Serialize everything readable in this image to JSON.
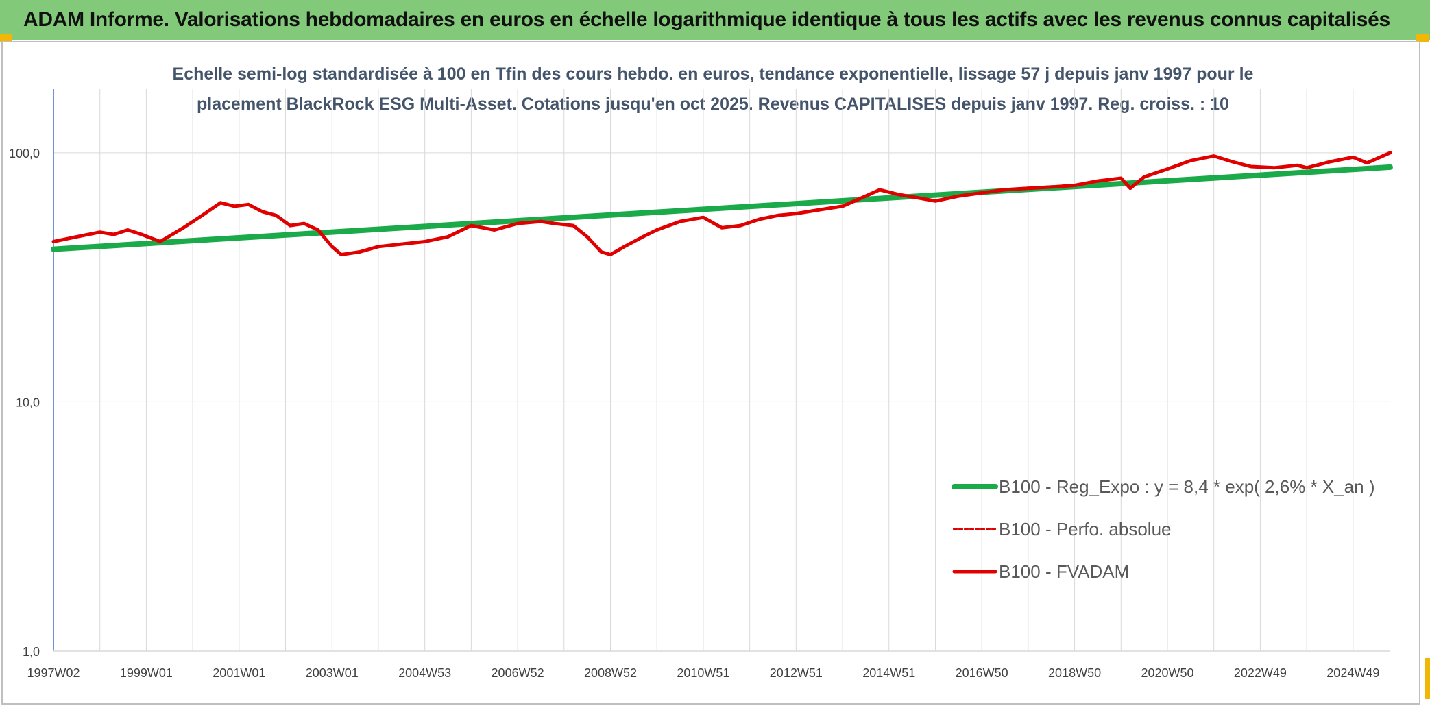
{
  "banner": {
    "title": "ADAM Informe. Valorisations hebdomadaires en euros en échelle logarithmique identique à tous les actifs avec les revenus connus capitalisés"
  },
  "chart_data": {
    "type": "line",
    "title_line1": "Echelle semi-log standardisée à 100 en Tfin des cours hebdo. en euros, tendance exponentielle, lissage 57 j depuis janv 1997 pour le",
    "title_line2": "placement BlackRock ESG Multi-Asset. Cotations jusqu'en oct 2025. Revenus CAPITALISES depuis janv 1997. Reg. croiss. : 10",
    "y_scale": "log",
    "ylim": [
      1,
      180
    ],
    "y_ticks": [
      {
        "value": 1,
        "label": "1,0"
      },
      {
        "value": 10,
        "label": "10,0"
      },
      {
        "value": 100,
        "label": "100,0"
      }
    ],
    "xlim": [
      1997.0,
      2025.8
    ],
    "x_ticks": [
      {
        "value": 1997.0,
        "label": "1997W02"
      },
      {
        "value": 1999.0,
        "label": "1999W01"
      },
      {
        "value": 2001.0,
        "label": "2001W01"
      },
      {
        "value": 2003.0,
        "label": "2003W01"
      },
      {
        "value": 2005.0,
        "label": "2004W53"
      },
      {
        "value": 2007.0,
        "label": "2006W52"
      },
      {
        "value": 2009.0,
        "label": "2008W52"
      },
      {
        "value": 2011.0,
        "label": "2010W51"
      },
      {
        "value": 2013.0,
        "label": "2012W51"
      },
      {
        "value": 2015.0,
        "label": "2014W51"
      },
      {
        "value": 2017.0,
        "label": "2016W50"
      },
      {
        "value": 2019.0,
        "label": "2018W50"
      },
      {
        "value": 2021.0,
        "label": "2020W50"
      },
      {
        "value": 2023.0,
        "label": "2022W49"
      },
      {
        "value": 2025.0,
        "label": "2024W49"
      }
    ],
    "grid": "vertical every year, horizontal at major ticks",
    "legend_position": "bottom-right",
    "series": [
      {
        "name": "B100 - Reg_Expo : y = 8,4 * exp( 2,6% *  X_an )",
        "color": "#1aaa4a",
        "style": "solid-thick",
        "x": [
          1997.0,
          2025.8
        ],
        "y": [
          41.0,
          87.5
        ]
      },
      {
        "name": "B100 - Perfo. absolue",
        "color": "#e00000",
        "style": "dotted",
        "x": [],
        "y": []
      },
      {
        "name": "B100 - FVADAM",
        "color": "#e00000",
        "style": "solid",
        "x": [
          1997.0,
          1997.5,
          1998.0,
          1998.3,
          1998.6,
          1998.9,
          1999.3,
          1999.8,
          2000.2,
          2000.6,
          2000.9,
          2001.2,
          2001.5,
          2001.8,
          2002.1,
          2002.4,
          2002.7,
          2003.0,
          2003.2,
          2003.6,
          2004.0,
          2004.5,
          2005.0,
          2005.5,
          2006.0,
          2006.5,
          2007.0,
          2007.5,
          2007.8,
          2008.2,
          2008.5,
          2008.8,
          2009.0,
          2009.3,
          2009.7,
          2010.0,
          2010.5,
          2011.0,
          2011.4,
          2011.8,
          2012.2,
          2012.6,
          2013.0,
          2013.5,
          2014.0,
          2014.5,
          2014.8,
          2015.2,
          2015.6,
          2016.0,
          2016.5,
          2017.0,
          2017.5,
          2018.0,
          2018.6,
          2019.0,
          2019.5,
          2020.0,
          2020.2,
          2020.5,
          2021.0,
          2021.5,
          2022.0,
          2022.4,
          2022.8,
          2023.3,
          2023.8,
          2024.0,
          2024.5,
          2025.0,
          2025.3,
          2025.8
        ],
        "y": [
          44,
          46,
          48,
          47,
          49,
          47,
          44,
          50,
          56,
          63,
          61,
          62,
          58,
          56,
          51,
          52,
          49,
          42,
          39,
          40,
          42,
          43,
          44,
          46,
          51,
          49,
          52,
          53,
          52,
          51,
          46,
          40,
          39,
          42,
          46,
          49,
          53,
          55,
          50,
          51,
          54,
          56,
          57,
          59,
          61,
          67,
          71,
          68,
          66,
          64,
          67,
          69,
          71,
          72,
          73,
          74,
          77,
          79,
          72,
          80,
          86,
          93,
          97,
          92,
          88,
          87,
          89,
          87,
          92,
          96,
          91,
          100
        ]
      }
    ]
  }
}
